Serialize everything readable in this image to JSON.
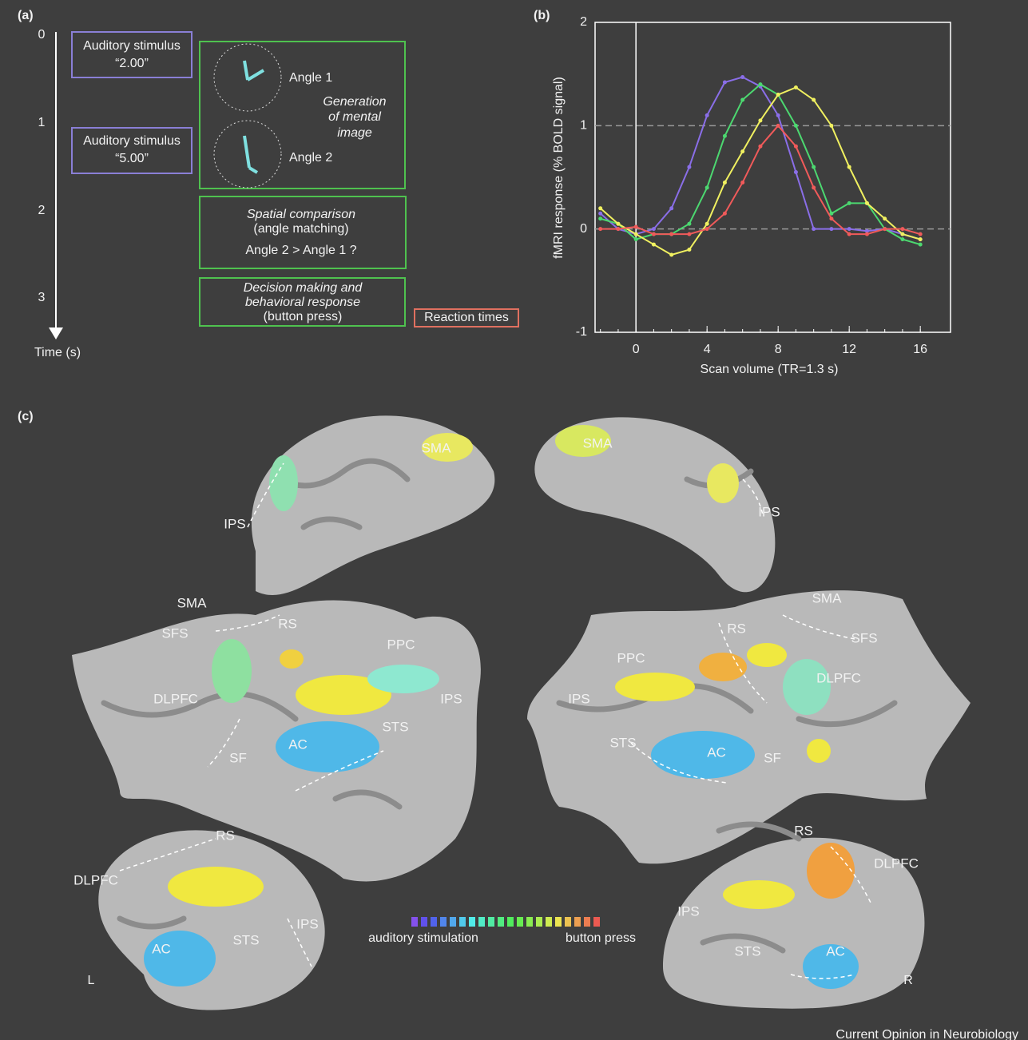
{
  "panel_a": {
    "label": "(a)",
    "time_ticks": [
      0,
      1,
      2,
      3
    ],
    "time_label": "Time (s)",
    "stimulus_1": [
      "Auditory stimulus",
      "“2.00”"
    ],
    "stimulus_2": [
      "Auditory stimulus",
      "“5.00”"
    ],
    "angle_1": "Angle 1",
    "angle_2": "Angle 2",
    "generation": [
      "Generation",
      "of mental",
      "image"
    ],
    "comparison": [
      "Spatial comparison",
      "(angle matching)",
      "Angle 2 > Angle 1  ?"
    ],
    "decision": [
      "Decision making and",
      "behavioral response",
      "(button press)"
    ],
    "reaction": "Reaction times"
  },
  "chart_data": {
    "type": "line",
    "label": "(b)",
    "x_label": "Scan volume (TR=1.3 s)",
    "y_label": "fMRI response (% BOLD signal)",
    "x": [
      -2,
      -1,
      0,
      1,
      2,
      3,
      4,
      5,
      6,
      7,
      8,
      9,
      10,
      11,
      12,
      13,
      14,
      15,
      16
    ],
    "xlim": [
      -2.3,
      17.7
    ],
    "xticks": [
      0,
      4,
      8,
      12,
      16
    ],
    "ylim": [
      -1,
      2
    ],
    "yticks": [
      -1,
      0,
      1,
      2
    ],
    "hlines": [
      0,
      1
    ],
    "vline": 0,
    "series": [
      {
        "color": "#8a6ee8",
        "values": [
          0.15,
          0.0,
          -0.05,
          0.0,
          0.2,
          0.6,
          1.1,
          1.42,
          1.47,
          1.38,
          1.1,
          0.55,
          0.0,
          0.0,
          0.0,
          -0.02,
          0.0,
          -0.05,
          -0.1
        ]
      },
      {
        "color": "#4cd870",
        "values": [
          0.1,
          0.05,
          -0.1,
          -0.05,
          -0.05,
          0.05,
          0.4,
          0.9,
          1.25,
          1.4,
          1.3,
          1.0,
          0.6,
          0.15,
          0.25,
          0.25,
          0.0,
          -0.1,
          -0.15
        ]
      },
      {
        "color": "#f0f060",
        "values": [
          0.2,
          0.05,
          -0.05,
          -0.15,
          -0.25,
          -0.2,
          0.05,
          0.45,
          0.75,
          1.05,
          1.3,
          1.37,
          1.25,
          1.0,
          0.6,
          0.25,
          0.1,
          -0.05,
          -0.1
        ]
      },
      {
        "color": "#f05a5a",
        "values": [
          0.0,
          0.0,
          0.02,
          -0.05,
          -0.05,
          -0.05,
          0.0,
          0.15,
          0.45,
          0.8,
          1.0,
          0.8,
          0.4,
          0.1,
          -0.05,
          -0.05,
          0.0,
          0.0,
          -0.05
        ]
      }
    ]
  },
  "panel_c": {
    "label": "(c)",
    "labels": [
      "SMA",
      "IPS",
      "SMA",
      "IPS",
      "SMA",
      "SFS",
      "RS",
      "PPC",
      "DLPFC",
      "IPS",
      "STS",
      "AC",
      "SF",
      "SMA",
      "RS",
      "SFS",
      "PPC",
      "DLPFC",
      "IPS",
      "STS",
      "AC",
      "SF",
      "RS",
      "DLPFC",
      "IPS",
      "STS",
      "AC",
      "RS",
      "DLPFC",
      "IPS",
      "STS",
      "AC"
    ],
    "legend_low": "auditory stimulation",
    "legend_high": "button press",
    "left": "L",
    "right": "R"
  },
  "credit": "Current Opinion in Neurobiology"
}
